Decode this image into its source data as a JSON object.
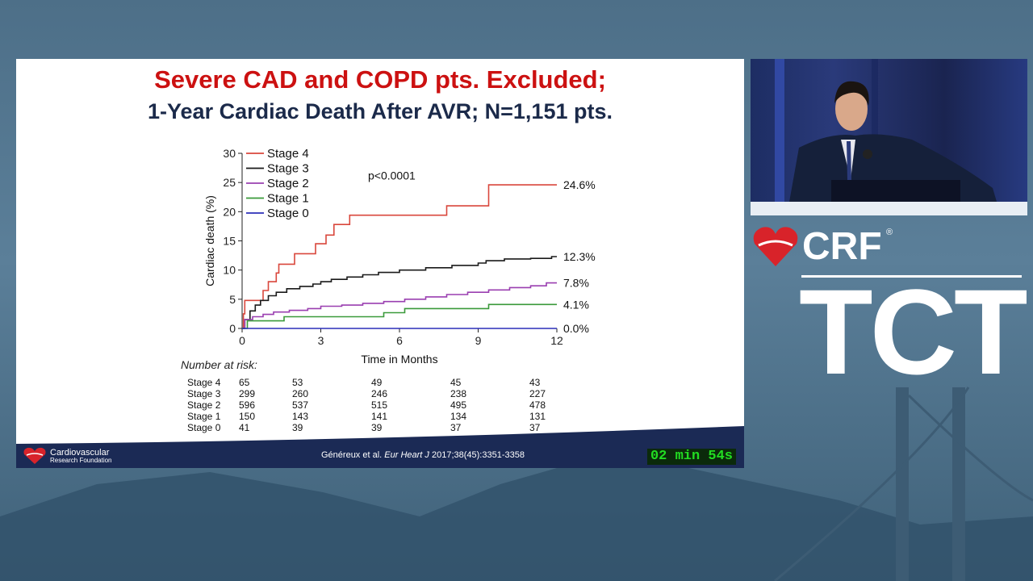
{
  "slide": {
    "title_line1": "Severe CAD and COPD pts. Excluded;",
    "title_line2": "1-Year Cardiac Death After AVR; N=1,151 pts.",
    "risk_header": "Number at risk:",
    "citation_prefix": "Généreux et al. ",
    "citation_journal": "Eur Heart J",
    "citation_suffix": " 2017;38(45):3351-3358",
    "org_line1": "Cardiovascular",
    "org_line2": "Research Foundation",
    "timer": "02 min 54s"
  },
  "risk_table": [
    {
      "stage": "Stage 4",
      "values": [
        "65",
        "53",
        "49",
        "45",
        "43"
      ]
    },
    {
      "stage": "Stage 3",
      "values": [
        "299",
        "260",
        "246",
        "238",
        "227"
      ]
    },
    {
      "stage": "Stage 2",
      "values": [
        "596",
        "537",
        "515",
        "495",
        "478"
      ]
    },
    {
      "stage": "Stage 1",
      "values": [
        "150",
        "143",
        "141",
        "134",
        "131"
      ]
    },
    {
      "stage": "Stage 0",
      "values": [
        "41",
        "39",
        "39",
        "37",
        "37"
      ]
    }
  ],
  "branding": {
    "crf": "CRF",
    "reg": "®",
    "tct": "TCT"
  },
  "chart_data": {
    "type": "line",
    "step": true,
    "xlabel": "Time in Months",
    "ylabel": "Cardiac death (%)",
    "xlim": [
      0,
      12
    ],
    "ylim": [
      0,
      30
    ],
    "xticks": [
      0,
      3,
      6,
      9,
      12
    ],
    "yticks": [
      0,
      5,
      10,
      15,
      20,
      25,
      30
    ],
    "annotation": "p<0.0001",
    "legend_position": "top-left",
    "series": [
      {
        "name": "Stage 4",
        "color": "#d9473c",
        "end_label": "24.6%",
        "x": [
          0,
          0.05,
          0.1,
          0.7,
          0.8,
          1.0,
          1.3,
          1.4,
          1.6,
          2.0,
          2.3,
          2.8,
          3.2,
          3.5,
          4.0,
          4.1,
          7.8,
          9.4,
          12
        ],
        "y": [
          0,
          2.5,
          4.8,
          4.8,
          6.5,
          8.0,
          9.5,
          11.0,
          11.0,
          12.8,
          12.8,
          14.5,
          16.0,
          17.8,
          17.8,
          19.4,
          21.0,
          24.6,
          24.6
        ]
      },
      {
        "name": "Stage 3",
        "color": "#1a1a1a",
        "end_label": "12.3%",
        "x": [
          0,
          0.1,
          0.3,
          0.5,
          0.7,
          1.0,
          1.3,
          1.7,
          2.2,
          2.7,
          3.0,
          3.4,
          4.0,
          4.6,
          5.2,
          6.0,
          7.0,
          8.0,
          9.0,
          9.3,
          10.0,
          11.0,
          11.8,
          12
        ],
        "y": [
          0,
          1.5,
          3.0,
          4.0,
          4.8,
          5.6,
          6.2,
          6.8,
          7.2,
          7.6,
          8.0,
          8.4,
          8.8,
          9.2,
          9.6,
          10.0,
          10.4,
          10.8,
          11.2,
          11.6,
          11.9,
          12.0,
          12.3,
          12.3
        ]
      },
      {
        "name": "Stage 2",
        "color": "#9a3fb0",
        "end_label": "7.8%",
        "x": [
          0,
          0.1,
          0.4,
          0.8,
          1.2,
          1.8,
          2.5,
          3.0,
          3.8,
          4.6,
          5.4,
          6.2,
          7.0,
          7.8,
          8.6,
          9.4,
          10.2,
          11.0,
          11.6,
          12
        ],
        "y": [
          0,
          1.5,
          2.0,
          2.4,
          2.8,
          3.1,
          3.4,
          3.8,
          4.0,
          4.3,
          4.6,
          5.0,
          5.4,
          5.8,
          6.2,
          6.6,
          7.0,
          7.3,
          7.8,
          7.8
        ]
      },
      {
        "name": "Stage 1",
        "color": "#3a9a3a",
        "end_label": "4.1%",
        "x": [
          0,
          0.2,
          1.6,
          5.4,
          6.2,
          9.4,
          12
        ],
        "y": [
          0,
          1.3,
          2.0,
          2.7,
          3.4,
          4.1,
          4.1
        ]
      },
      {
        "name": "Stage 0",
        "color": "#2b2fb8",
        "end_label": "0.0%",
        "x": [
          0,
          12
        ],
        "y": [
          0,
          0
        ]
      }
    ]
  }
}
